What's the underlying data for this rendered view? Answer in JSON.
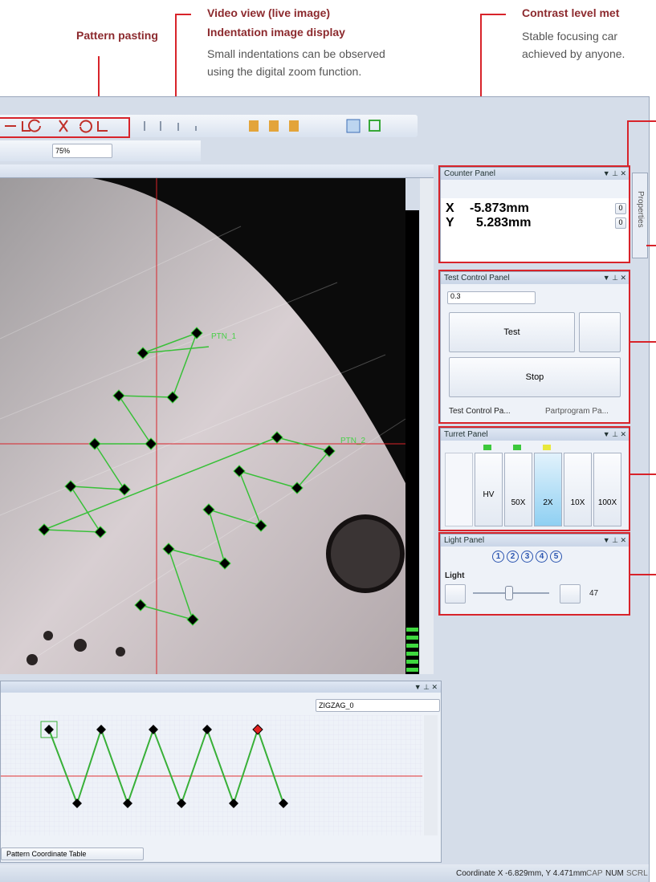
{
  "annotations": {
    "pattern_pasting": "Pattern pasting",
    "video_view": {
      "title_1": "Video view (live image)",
      "title_2": "Indentation image display",
      "desc_1": "Small indentations can be observed",
      "desc_2": "using the digital zoom function."
    },
    "contrast": {
      "title": "Contrast level met",
      "desc_1": "Stable focusing car",
      "desc_2": "achieved by anyone."
    }
  },
  "toolbar": {
    "zoom": "75%"
  },
  "image_labels": [
    "PTN_1",
    "PTN_2"
  ],
  "counter_panel": {
    "title": "Counter Panel",
    "x_label": "X",
    "x_value": "-5.873mm",
    "y_label": "Y",
    "y_value": "5.283mm",
    "reset": [
      "0",
      "0"
    ]
  },
  "properties_tab": "Properties",
  "test_control_panel": {
    "title": "Test Control Panel",
    "load": "0.3",
    "test": "Test",
    "stop": "Stop",
    "tabs": [
      "Test Control Pa...",
      "Partprogram Pa..."
    ]
  },
  "turret_panel": {
    "title": "Turret Panel",
    "lenses": [
      "HV",
      "50X",
      "2X",
      "10X",
      "100X"
    ]
  },
  "light_panel": {
    "title": "Light Panel",
    "presets": [
      "1",
      "2",
      "3",
      "4",
      "5"
    ],
    "label": "Light",
    "value": "47"
  },
  "pattern_panel": {
    "pattern": "ZIGZAG_0",
    "tab": "Pattern Coordinate Table"
  },
  "status_bar": {
    "coordinate": "Coordinate X -6.829mm, Y 4.471mm",
    "cap": "CAP",
    "num": "NUM",
    "scrl": "SCRL"
  }
}
